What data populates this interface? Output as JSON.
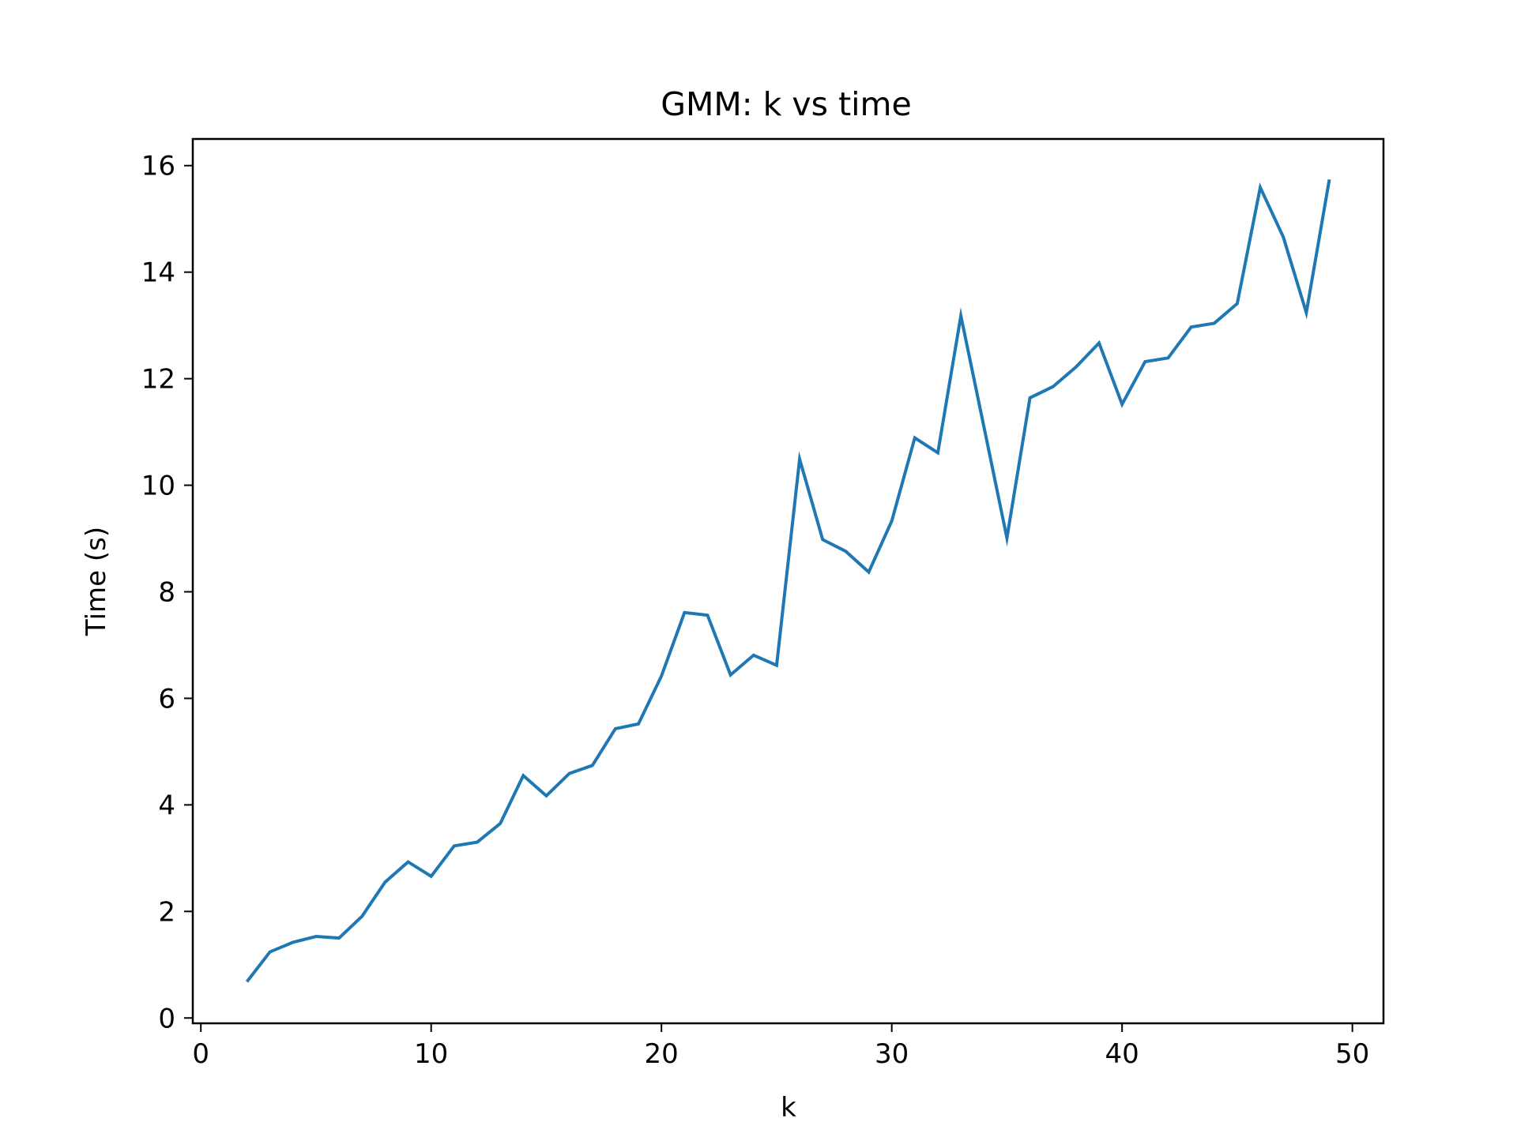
{
  "chart_data": {
    "type": "line",
    "title": "GMM: k vs time",
    "xlabel": "k",
    "ylabel": "Time (s)",
    "xlim": [
      -0.35,
      51.35
    ],
    "ylim": [
      -0.1,
      16.5
    ],
    "xticks": [
      0,
      10,
      20,
      30,
      40,
      50
    ],
    "yticks": [
      0,
      2,
      4,
      6,
      8,
      10,
      12,
      14,
      16
    ],
    "grid": false,
    "series": [
      {
        "color": "#1f77b4",
        "x": [
          2,
          3,
          4,
          5,
          6,
          7,
          8,
          9,
          10,
          11,
          12,
          13,
          14,
          15,
          16,
          17,
          18,
          19,
          20,
          21,
          22,
          23,
          24,
          25,
          26,
          27,
          28,
          29,
          30,
          31,
          32,
          33,
          34,
          35,
          36,
          37,
          38,
          39,
          40,
          41,
          42,
          43,
          44,
          45,
          46,
          47,
          48,
          49
        ],
        "y": [
          0.68,
          1.24,
          1.42,
          1.53,
          1.5,
          1.91,
          2.55,
          2.93,
          2.66,
          3.23,
          3.3,
          3.65,
          4.55,
          4.17,
          4.59,
          4.74,
          5.43,
          5.52,
          6.42,
          7.61,
          7.56,
          6.44,
          6.81,
          6.62,
          10.49,
          8.98,
          8.76,
          8.37,
          9.33,
          10.89,
          10.61,
          13.18,
          11.1,
          9.01,
          11.64,
          11.85,
          12.22,
          12.67,
          11.52,
          12.32,
          12.39,
          12.97,
          13.04,
          13.41,
          15.59,
          14.66,
          13.24,
          15.74
        ]
      }
    ]
  }
}
